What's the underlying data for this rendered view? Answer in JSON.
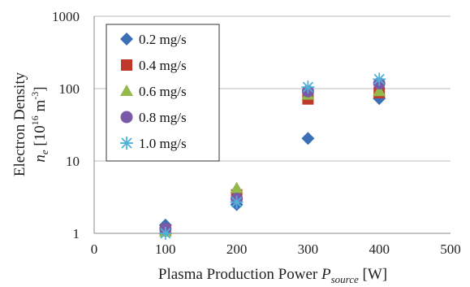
{
  "chart_data": {
    "type": "scatter",
    "title": "",
    "xlabel": {
      "main": "Plasma Production Power ",
      "var": "P",
      "sub": "source",
      "unit": " [W]"
    },
    "ylabel": {
      "line1": "Electron Density",
      "var": "n",
      "sub": "e",
      "unit_pre": " [10",
      "unit_exp": "16",
      "unit_mid": " m",
      "unit_exp2": "-3",
      "unit_post": "]"
    },
    "x_ticks": [
      "0",
      "100",
      "200",
      "300",
      "400",
      "500"
    ],
    "y_ticks": [
      "1",
      "10",
      "100",
      "1000"
    ],
    "xlim": [
      0,
      500
    ],
    "ylim": [
      1,
      1000
    ],
    "y_scale": "log",
    "grid": "horizontal major gridlines",
    "legend_position": "upper-left",
    "series": [
      {
        "name": "0.2 mg/s",
        "marker": "diamond",
        "color": "#3b6fb6",
        "x": [
          100,
          200,
          300,
          400
        ],
        "y": [
          1.3,
          2.5,
          20.5,
          73
        ]
      },
      {
        "name": "0.4 mg/s",
        "marker": "square",
        "color": "#c0392b",
        "x": [
          100,
          200,
          300,
          400
        ],
        "y": [
          1.1,
          3.4,
          72,
          88
        ]
      },
      {
        "name": "0.6 mg/s",
        "marker": "triangle",
        "color": "#93b84c",
        "x": [
          100,
          200,
          300,
          400
        ],
        "y": [
          1.05,
          4.2,
          82,
          92
        ]
      },
      {
        "name": "0.8 mg/s",
        "marker": "circle",
        "color": "#7a5aa8",
        "x": [
          100,
          200,
          300,
          400
        ],
        "y": [
          1.15,
          3.0,
          92,
          118
        ]
      },
      {
        "name": "1.0 mg/s",
        "marker": "star",
        "color": "#4fb3d9",
        "x": [
          100,
          200,
          300,
          400
        ],
        "y": [
          1.0,
          2.7,
          105,
          135
        ]
      }
    ]
  }
}
